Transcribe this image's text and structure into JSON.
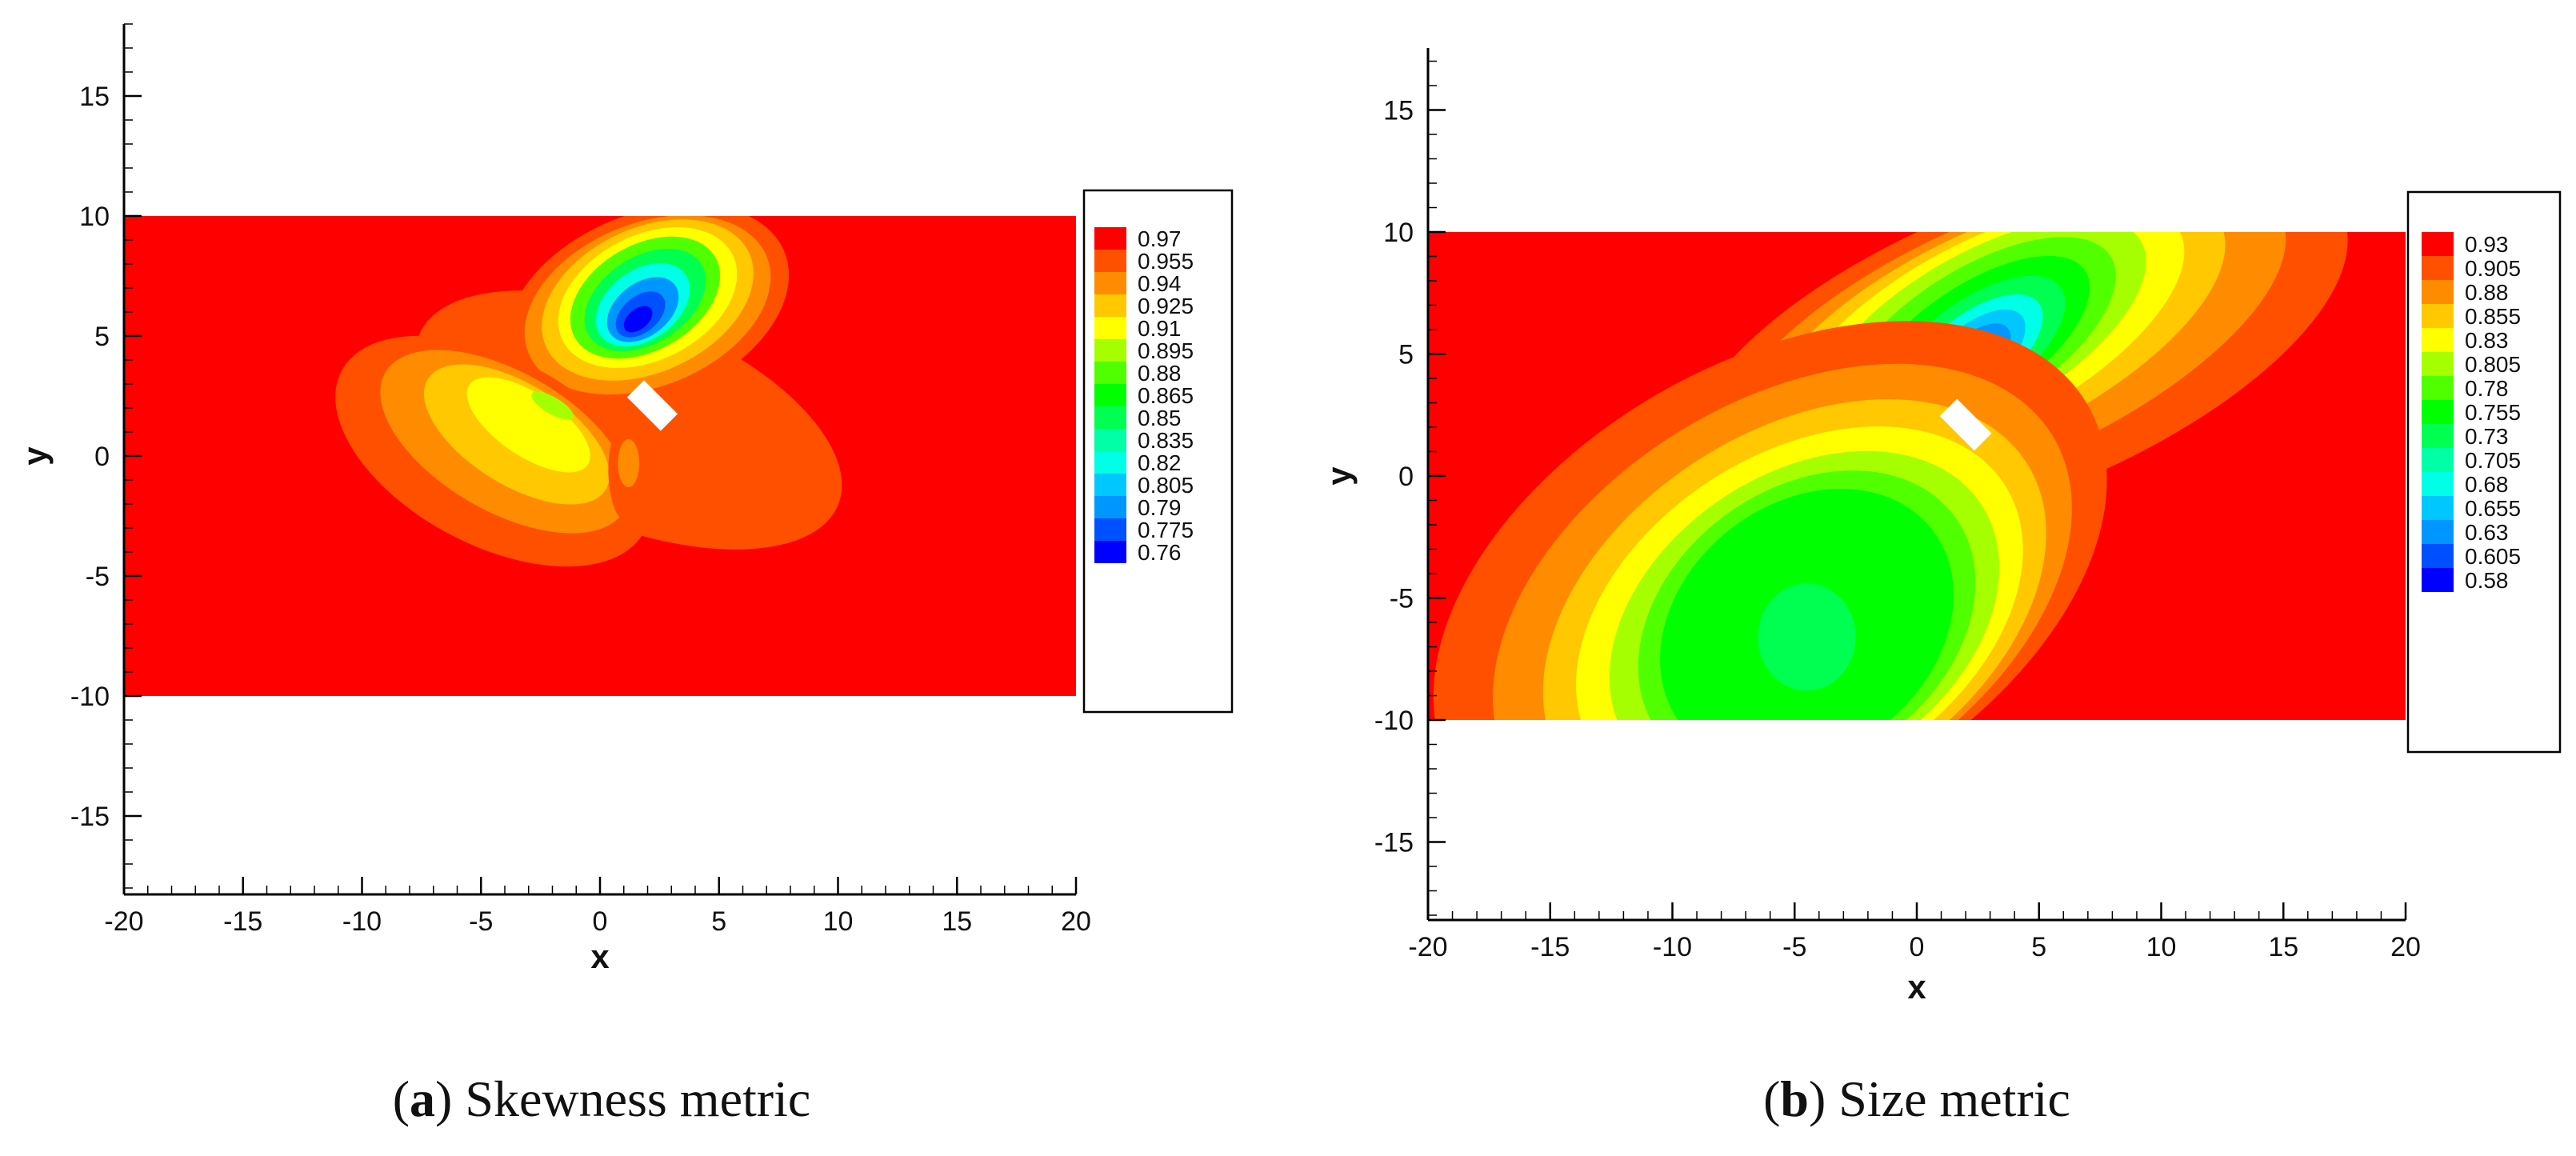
{
  "chart_data": [
    {
      "type": "heatmap",
      "panel_label": "a",
      "caption": "Skewness metric",
      "xlabel": "x",
      "ylabel": "y",
      "xlim": [
        -20,
        20
      ],
      "ylim": [
        -18,
        18
      ],
      "xticks": [
        "-20",
        "-15",
        "-10",
        "-5",
        "0",
        "5",
        "10",
        "15",
        "20"
      ],
      "yticks": [
        "-15",
        "-10",
        "-5",
        "0",
        "5",
        "10",
        "15"
      ],
      "domain": {
        "x": [
          -20,
          20
        ],
        "y": [
          -10,
          10
        ]
      },
      "obstacle": {
        "center": [
          2.2,
          2.1
        ],
        "width": 2.0,
        "height": 1.0,
        "angle_deg": -45
      },
      "legend": {
        "levels": [
          "0.97",
          "0.955",
          "0.94",
          "0.925",
          "0.91",
          "0.895",
          "0.88",
          "0.865",
          "0.85",
          "0.835",
          "0.82",
          "0.805",
          "0.79",
          "0.775",
          "0.76"
        ],
        "colors": [
          "#ff0000",
          "#ff5000",
          "#ff8c00",
          "#ffc800",
          "#ffff00",
          "#a6ff00",
          "#50ff00",
          "#00ff00",
          "#00ff50",
          "#00ffa6",
          "#00ffe6",
          "#00c8ff",
          "#0096ff",
          "#0050ff",
          "#0000ff"
        ]
      },
      "regions": [
        {
          "cx": 1.2,
          "cy": 1.5,
          "rx": 9.5,
          "ry": 4.4,
          "rot": 22,
          "level": 1
        },
        {
          "cx": 2.0,
          "cy": 6.2,
          "rx": 6.2,
          "ry": 3.9,
          "rot": -22,
          "level": 1
        },
        {
          "cx": 2.0,
          "cy": 6.3,
          "rx": 5.4,
          "ry": 3.4,
          "rot": -22,
          "level": 2
        },
        {
          "cx": 2.0,
          "cy": 6.5,
          "rx": 4.7,
          "ry": 3.0,
          "rot": -25,
          "level": 3
        },
        {
          "cx": 2.0,
          "cy": 6.6,
          "rx": 4.0,
          "ry": 2.6,
          "rot": -27,
          "level": 4
        },
        {
          "cx": 1.9,
          "cy": 6.6,
          "rx": 3.4,
          "ry": 2.2,
          "rot": -30,
          "level": 6
        },
        {
          "cx": 1.9,
          "cy": 6.5,
          "rx": 2.8,
          "ry": 1.8,
          "rot": -33,
          "level": 8
        },
        {
          "cx": 1.8,
          "cy": 6.3,
          "rx": 2.2,
          "ry": 1.45,
          "rot": -36,
          "level": 10
        },
        {
          "cx": 1.8,
          "cy": 6.1,
          "rx": 1.7,
          "ry": 1.1,
          "rot": -38,
          "level": 12
        },
        {
          "cx": 1.7,
          "cy": 5.9,
          "rx": 1.2,
          "ry": 0.75,
          "rot": -40,
          "level": 13
        },
        {
          "cx": 1.6,
          "cy": 5.7,
          "rx": 0.7,
          "ry": 0.42,
          "rot": -40,
          "level": 14
        },
        {
          "cx": -4.5,
          "cy": 0.2,
          "rx": 7.2,
          "ry": 3.9,
          "rot": 28,
          "level": 1
        },
        {
          "cx": -4.0,
          "cy": 0.6,
          "rx": 5.8,
          "ry": 2.9,
          "rot": 30,
          "level": 2
        },
        {
          "cx": -3.5,
          "cy": 0.9,
          "rx": 4.4,
          "ry": 2.1,
          "rot": 32,
          "level": 3
        },
        {
          "cx": -3.0,
          "cy": 1.3,
          "rx": 3.0,
          "ry": 1.3,
          "rot": 34,
          "level": 4
        },
        {
          "cx": -2.0,
          "cy": 2.1,
          "rx": 1.0,
          "ry": 0.35,
          "rot": 30,
          "level": 5
        },
        {
          "cx": 1.2,
          "cy": -0.6,
          "rx": 0.85,
          "ry": 2.2,
          "rot": 0,
          "level": 1
        },
        {
          "cx": 1.2,
          "cy": -0.3,
          "rx": 0.45,
          "ry": 1.0,
          "rot": 0,
          "level": 2
        }
      ]
    },
    {
      "type": "heatmap",
      "panel_label": "b",
      "caption": "Size metric",
      "xlabel": "x",
      "ylabel": "y",
      "xlim": [
        -20,
        20
      ],
      "ylim": [
        -18,
        18
      ],
      "xticks": [
        "-20",
        "-15",
        "-10",
        "-5",
        "0",
        "5",
        "10",
        "15",
        "20"
      ],
      "yticks": [
        "-15",
        "-10",
        "-5",
        "0",
        "5",
        "10",
        "15"
      ],
      "domain": {
        "x": [
          -20,
          20
        ],
        "y": [
          -10,
          10
        ]
      },
      "obstacle": {
        "center": [
          2.0,
          2.1
        ],
        "width": 2.0,
        "height": 1.0,
        "angle_deg": -45
      },
      "legend": {
        "levels": [
          "0.93",
          "0.905",
          "0.88",
          "0.855",
          "0.83",
          "0.805",
          "0.78",
          "0.755",
          "0.73",
          "0.705",
          "0.68",
          "0.655",
          "0.63",
          "0.605",
          "0.58"
        ],
        "colors": [
          "#ff0000",
          "#ff5000",
          "#ff8c00",
          "#ffc800",
          "#ffff00",
          "#a6ff00",
          "#50ff00",
          "#00ff00",
          "#00ff50",
          "#00ffa6",
          "#00ffe6",
          "#00c8ff",
          "#0096ff",
          "#0050ff",
          "#0000ff"
        ]
      },
      "regions": [
        {
          "cx": 4.0,
          "cy": 5.2,
          "rx": 14.5,
          "ry": 6.0,
          "rot": -22,
          "level": 1
        },
        {
          "cx": 3.5,
          "cy": 5.5,
          "rx": 12.5,
          "ry": 5.0,
          "rot": -24,
          "level": 2
        },
        {
          "cx": 3.0,
          "cy": 5.7,
          "rx": 10.5,
          "ry": 4.3,
          "rot": -26,
          "level": 3
        },
        {
          "cx": 2.8,
          "cy": 5.8,
          "rx": 9.0,
          "ry": 3.8,
          "rot": -28,
          "level": 4
        },
        {
          "cx": 2.6,
          "cy": 5.8,
          "rx": 7.6,
          "ry": 3.3,
          "rot": -30,
          "level": 5
        },
        {
          "cx": 2.5,
          "cy": 5.6,
          "rx": 6.4,
          "ry": 2.9,
          "rot": -32,
          "level": 6
        },
        {
          "cx": 2.4,
          "cy": 5.4,
          "rx": 5.4,
          "ry": 2.4,
          "rot": -34,
          "level": 7
        },
        {
          "cx": 2.4,
          "cy": 5.2,
          "rx": 4.3,
          "ry": 2.0,
          "rot": -36,
          "level": 8
        },
        {
          "cx": 2.3,
          "cy": 5.0,
          "rx": 3.4,
          "ry": 1.6,
          "rot": -38,
          "level": 10
        },
        {
          "cx": 2.3,
          "cy": 4.9,
          "rx": 2.6,
          "ry": 1.25,
          "rot": -40,
          "level": 11
        },
        {
          "cx": 2.3,
          "cy": 4.8,
          "rx": 1.9,
          "ry": 0.95,
          "rot": -42,
          "level": 12
        },
        {
          "cx": 2.3,
          "cy": 4.7,
          "rx": 1.3,
          "ry": 0.65,
          "rot": -44,
          "level": 13
        },
        {
          "cx": 2.3,
          "cy": 4.6,
          "rx": 0.7,
          "ry": 0.38,
          "rot": -45,
          "level": 14
        },
        {
          "cx": -6.0,
          "cy": -4.6,
          "rx": 15.0,
          "ry": 9.2,
          "rot": -30,
          "level": 1
        },
        {
          "cx": -5.5,
          "cy": -5.2,
          "rx": 13.0,
          "ry": 8.2,
          "rot": -32,
          "level": 2
        },
        {
          "cx": -5.0,
          "cy": -5.6,
          "rx": 11.3,
          "ry": 7.4,
          "rot": -33,
          "level": 3
        },
        {
          "cx": -4.8,
          "cy": -5.8,
          "rx": 10.0,
          "ry": 6.7,
          "rot": -33,
          "level": 4
        },
        {
          "cx": -4.6,
          "cy": -6.0,
          "rx": 8.7,
          "ry": 6.1,
          "rot": -34,
          "level": 5
        },
        {
          "cx": -4.5,
          "cy": -6.1,
          "rx": 7.5,
          "ry": 5.6,
          "rot": -36,
          "level": 6
        },
        {
          "cx": -4.5,
          "cy": -6.2,
          "rx": 6.5,
          "ry": 5.1,
          "rot": -38,
          "level": 7
        },
        {
          "cx": -4.5,
          "cy": -6.6,
          "rx": 2.0,
          "ry": 2.2,
          "rot": 0,
          "level": 8
        }
      ]
    }
  ],
  "captions": [
    {
      "label": "a",
      "text": "Skewness metric"
    },
    {
      "label": "b",
      "text": "Size metric"
    }
  ]
}
